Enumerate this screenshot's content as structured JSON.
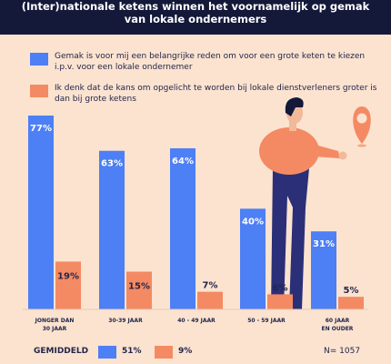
{
  "header": {
    "title_line1": "(Inter)nationale ketens winnen het voornamelijk op gemak",
    "title_line2": "van lokale ondernemers"
  },
  "legend": [
    {
      "label": "Gemak is voor mij een belangrijke reden om voor een grote keten te kiezen i.p.v. voor een lokale ondernemer",
      "color": "#4d7ff5"
    },
    {
      "label": "Ik denk dat de kans om opgelicht te worden bij lokale dienstverleners groter is dan bij grote ketens",
      "color": "#f48a63"
    }
  ],
  "chart_data": {
    "type": "bar",
    "categories": [
      [
        "JONGER DAN",
        "30 JAAR"
      ],
      [
        "30-39 JAAR"
      ],
      [
        "40 - 49 JAAR"
      ],
      [
        "50 - 59 JAAR"
      ],
      [
        "60 JAAR",
        "EN OUDER"
      ]
    ],
    "series": [
      {
        "name": "Gemak is voor mij een belangrijke reden om voor een grote keten te kiezen i.p.v. voor een lokale ondernemer",
        "values": [
          77,
          63,
          64,
          40,
          31
        ],
        "color": "#4d7ff5"
      },
      {
        "name": "Ik denk dat de kans om opgelicht te worden bij lokale dienstverleners groter is dan bij grote ketens",
        "values": [
          19,
          15,
          7,
          6,
          5
        ],
        "color": "#f48a63"
      }
    ],
    "value_suffix": "%",
    "ylim": [
      0,
      77
    ]
  },
  "footer": {
    "average_label": "GEMIDDELD",
    "average_values": [
      "51%",
      "9%"
    ],
    "sample_size": "N= 1057"
  },
  "colors": {
    "background": "#fbe3d0",
    "header": "#14193a",
    "blue": "#4d7ff5",
    "orange": "#f48a63",
    "text": "#23264a",
    "person_shirt": "#f48a63",
    "person_pants": "#2a2f78",
    "pin": "#f48a63"
  },
  "illustration": {
    "icons": [
      "person-illustration",
      "location-pin-icon"
    ]
  }
}
